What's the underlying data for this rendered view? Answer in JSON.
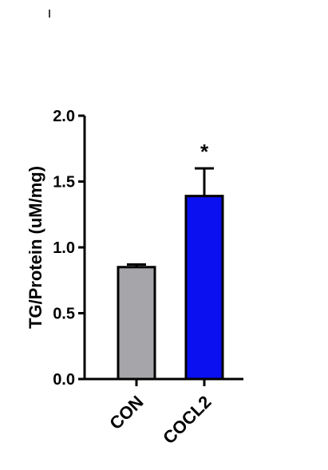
{
  "chart_data": {
    "type": "bar",
    "title": "",
    "xlabel": "",
    "ylabel": "TG/Protein (uM/mg)",
    "ylim": [
      0,
      2.0
    ],
    "yticks": [
      0.0,
      0.5,
      1.0,
      1.5,
      2.0
    ],
    "ytick_labels": [
      "0.0",
      "0.5",
      "1.0",
      "1.5",
      "2.0"
    ],
    "categories": [
      "CON",
      "COCL2"
    ],
    "values": [
      0.85,
      1.39
    ],
    "errors": [
      0.02,
      0.21
    ],
    "colors": [
      "#a6a6aa",
      "#0a10f0"
    ],
    "significance": [
      "",
      "*"
    ],
    "grid": false,
    "legend": "none"
  }
}
